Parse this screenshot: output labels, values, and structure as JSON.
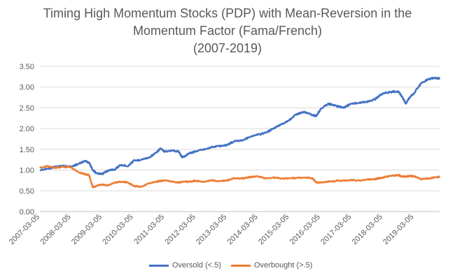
{
  "chart_data": {
    "type": "line",
    "title_lines": [
      "Timing High Momentum Stocks (PDP) with Mean-Reversion in the",
      "Momentum Factor (Fama/French)",
      "(2007-2019)"
    ],
    "ylim": [
      0,
      3.5
    ],
    "y_ticks": [
      "0.00",
      "0.50",
      "1.00",
      "1.50",
      "2.00",
      "2.50",
      "3.00",
      "3.50"
    ],
    "x_ticks": [
      "2007-03-05",
      "2008-03-05",
      "2009-03-05",
      "2010-03-05",
      "2011-03-05",
      "2012-03-05",
      "2013-03-05",
      "2014-03-05",
      "2015-03-05",
      "2016-03-05",
      "2017-03-05",
      "2018-03-05",
      "2019-03-05"
    ],
    "x_range": [
      "2007-03-05",
      "2019-12-31"
    ],
    "grid": "horizontal",
    "legend_position": "bottom",
    "series": [
      {
        "name": "Oversold (<.5)",
        "color": "#4472C4",
        "x": [
          "2007-03-05",
          "2007-06-01",
          "2007-09-01",
          "2007-12-01",
          "2008-03-01",
          "2008-06-01",
          "2008-08-15",
          "2008-10-01",
          "2008-11-15",
          "2009-01-01",
          "2009-03-01",
          "2009-05-01",
          "2009-08-01",
          "2009-10-01",
          "2010-01-01",
          "2010-03-05",
          "2010-06-01",
          "2010-09-01",
          "2010-12-01",
          "2011-01-15",
          "2011-03-01",
          "2011-06-01",
          "2011-08-15",
          "2011-10-01",
          "2011-12-15",
          "2012-03-01",
          "2012-06-01",
          "2012-09-01",
          "2012-12-01",
          "2013-03-01",
          "2013-06-01",
          "2013-09-01",
          "2013-12-01",
          "2014-03-01",
          "2014-06-01",
          "2014-09-01",
          "2014-12-01",
          "2015-03-01",
          "2015-06-01",
          "2015-09-01",
          "2015-12-01",
          "2016-01-15",
          "2016-03-01",
          "2016-06-01",
          "2016-09-01",
          "2016-12-01",
          "2017-03-01",
          "2017-06-01",
          "2017-09-01",
          "2017-12-01",
          "2018-01-15",
          "2018-03-05",
          "2018-06-01",
          "2018-09-01",
          "2018-10-15",
          "2018-12-01",
          "2019-01-15",
          "2019-03-05",
          "2019-06-01",
          "2019-09-01",
          "2019-12-01",
          "2019-12-31"
        ],
        "y": [
          1.0,
          1.03,
          1.08,
          1.1,
          1.08,
          1.15,
          1.22,
          1.18,
          1.0,
          0.92,
          0.9,
          0.98,
          1.02,
          1.12,
          1.1,
          1.22,
          1.25,
          1.3,
          1.42,
          1.52,
          1.45,
          1.47,
          1.45,
          1.3,
          1.4,
          1.45,
          1.5,
          1.55,
          1.58,
          1.6,
          1.7,
          1.72,
          1.8,
          1.85,
          1.9,
          2.0,
          2.1,
          2.2,
          2.35,
          2.4,
          2.33,
          2.3,
          2.45,
          2.6,
          2.55,
          2.5,
          2.6,
          2.62,
          2.65,
          2.7,
          2.78,
          2.85,
          2.88,
          2.9,
          2.78,
          2.6,
          2.75,
          2.85,
          3.1,
          3.2,
          3.22,
          3.2
        ]
      },
      {
        "name": "Overbought (>.5)",
        "color": "#ED7D31",
        "x": [
          "2007-03-05",
          "2007-06-01",
          "2007-09-01",
          "2007-12-01",
          "2008-03-01",
          "2008-06-01",
          "2008-08-15",
          "2008-10-01",
          "2008-11-15",
          "2009-01-01",
          "2009-03-01",
          "2009-05-01",
          "2009-08-01",
          "2009-10-01",
          "2010-01-01",
          "2010-03-05",
          "2010-06-01",
          "2010-09-01",
          "2010-12-01",
          "2011-01-15",
          "2011-03-01",
          "2011-06-01",
          "2011-08-15",
          "2011-10-01",
          "2011-12-15",
          "2012-03-01",
          "2012-06-01",
          "2012-09-01",
          "2012-12-01",
          "2013-03-01",
          "2013-06-01",
          "2013-09-01",
          "2013-12-01",
          "2014-03-01",
          "2014-06-01",
          "2014-09-01",
          "2014-12-01",
          "2015-03-01",
          "2015-06-01",
          "2015-09-01",
          "2015-12-01",
          "2016-01-15",
          "2016-03-01",
          "2016-06-01",
          "2016-09-01",
          "2016-12-01",
          "2017-03-01",
          "2017-06-01",
          "2017-09-01",
          "2017-12-01",
          "2018-01-15",
          "2018-03-05",
          "2018-06-01",
          "2018-09-01",
          "2018-10-15",
          "2018-12-01",
          "2019-01-15",
          "2019-03-05",
          "2019-06-01",
          "2019-09-01",
          "2019-12-01",
          "2019-12-31"
        ],
        "y": [
          1.05,
          1.1,
          1.05,
          1.08,
          1.07,
          0.95,
          0.9,
          0.88,
          0.58,
          0.62,
          0.65,
          0.63,
          0.7,
          0.72,
          0.7,
          0.62,
          0.6,
          0.68,
          0.72,
          0.74,
          0.75,
          0.73,
          0.7,
          0.72,
          0.72,
          0.74,
          0.72,
          0.75,
          0.73,
          0.75,
          0.8,
          0.8,
          0.83,
          0.85,
          0.8,
          0.82,
          0.8,
          0.8,
          0.81,
          0.82,
          0.8,
          0.7,
          0.7,
          0.72,
          0.74,
          0.75,
          0.76,
          0.75,
          0.77,
          0.78,
          0.8,
          0.82,
          0.86,
          0.88,
          0.85,
          0.84,
          0.86,
          0.85,
          0.78,
          0.8,
          0.83,
          0.84
        ]
      }
    ]
  }
}
